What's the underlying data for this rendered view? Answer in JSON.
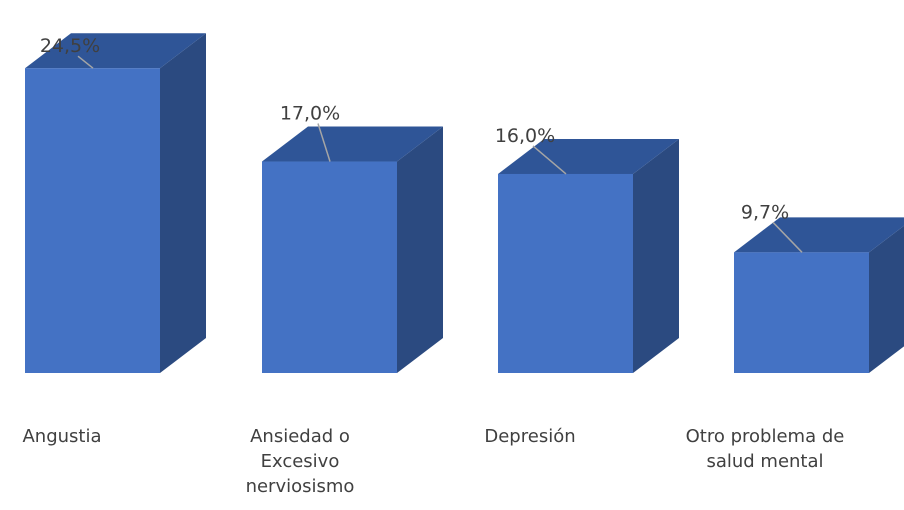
{
  "chart_data": {
    "type": "bar",
    "style": "3d-column",
    "categories": [
      "Angustia",
      "Ansiedad o\nExcesivo\nnerviosismo",
      "Depresión",
      "Otro problema de\nsalud mental"
    ],
    "values": [
      24.5,
      17.0,
      16.0,
      9.7
    ],
    "data_labels": [
      "24,5%",
      "17,0%",
      "16,0%",
      "9,7%"
    ],
    "title": "",
    "xlabel": "",
    "ylabel": "",
    "ylim": [
      0,
      25
    ],
    "grid": false,
    "legend": "none",
    "colors": {
      "front": "#4472C4",
      "top": "#2F5597",
      "side": "#2B4A80",
      "leader": "#A5A5A5",
      "text": "#404040"
    }
  }
}
